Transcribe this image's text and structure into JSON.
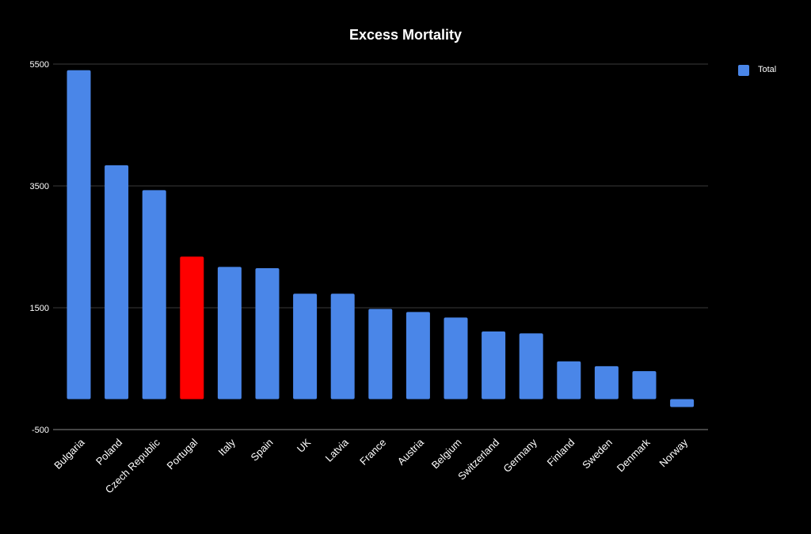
{
  "chart_data": {
    "type": "bar",
    "title": "Excess Mortality",
    "xlabel": "",
    "ylabel": "",
    "ylim": [
      -500,
      5500
    ],
    "yticks": [
      -500,
      1500,
      3500,
      5500
    ],
    "grid": true,
    "legend": {
      "position": "top-right",
      "entries": [
        "Total"
      ]
    },
    "categories": [
      "Bulgaria",
      "Poland",
      "Czech Republic",
      "Portugal",
      "Italy",
      "Spain",
      "UK",
      "Latvia",
      "France",
      "Austria",
      "Belgium",
      "Switzerland",
      "Germany",
      "Finland",
      "Sweden",
      "Denmark",
      "Norway"
    ],
    "series": [
      {
        "name": "Total",
        "color": "#4a86e8",
        "values": [
          5400,
          3840,
          3430,
          2340,
          2170,
          2150,
          1730,
          1730,
          1480,
          1430,
          1340,
          1110,
          1080,
          620,
          540,
          460,
          -130
        ],
        "highlight": {
          "category": "Portugal",
          "color": "#ff0000"
        }
      }
    ]
  }
}
